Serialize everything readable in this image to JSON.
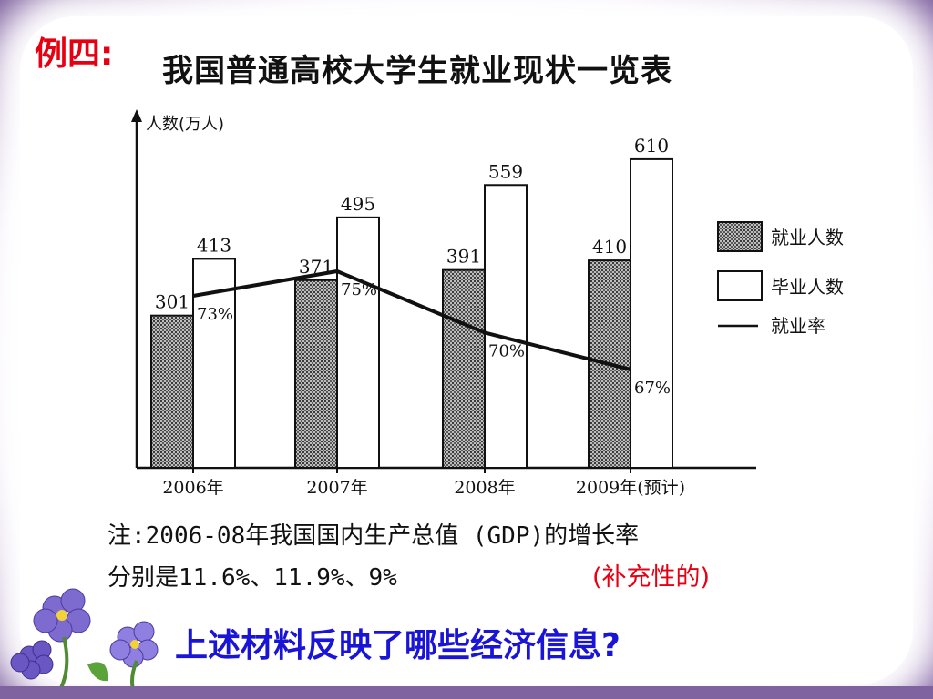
{
  "slide": {
    "example_tag": "例四:",
    "title": "我国普通高校大学生就业现状一览表",
    "note_line1": "注:2006-08年我国国内生产总值 (GDP)的增长率",
    "note_line2": "分别是11.6%、11.9%、9%",
    "supplement": "(补充性的)",
    "question": "上述材料反映了哪些经济信息?"
  },
  "chart_data": {
    "type": "bar",
    "title": "",
    "ylabel": "人数(万人)",
    "xlabel": "",
    "categories": [
      "2006年",
      "2007年",
      "2008年",
      "2009年(预计)"
    ],
    "series": [
      {
        "name": "就业人数",
        "values": [
          301,
          371,
          391,
          410
        ],
        "style": "hatched"
      },
      {
        "name": "毕业人数",
        "values": [
          413,
          495,
          559,
          610
        ],
        "style": "white"
      }
    ],
    "line_series": {
      "name": "就业率",
      "values": [
        73,
        75,
        70,
        67
      ],
      "labels": [
        "73%",
        "75%",
        "70%",
        "67%"
      ]
    },
    "ylim": [
      0,
      680
    ],
    "legend_position": "right",
    "colors": {
      "hatch_dark": "#3a3a3a",
      "hatch_light": "#bdbdbd",
      "line": "#111111"
    }
  }
}
